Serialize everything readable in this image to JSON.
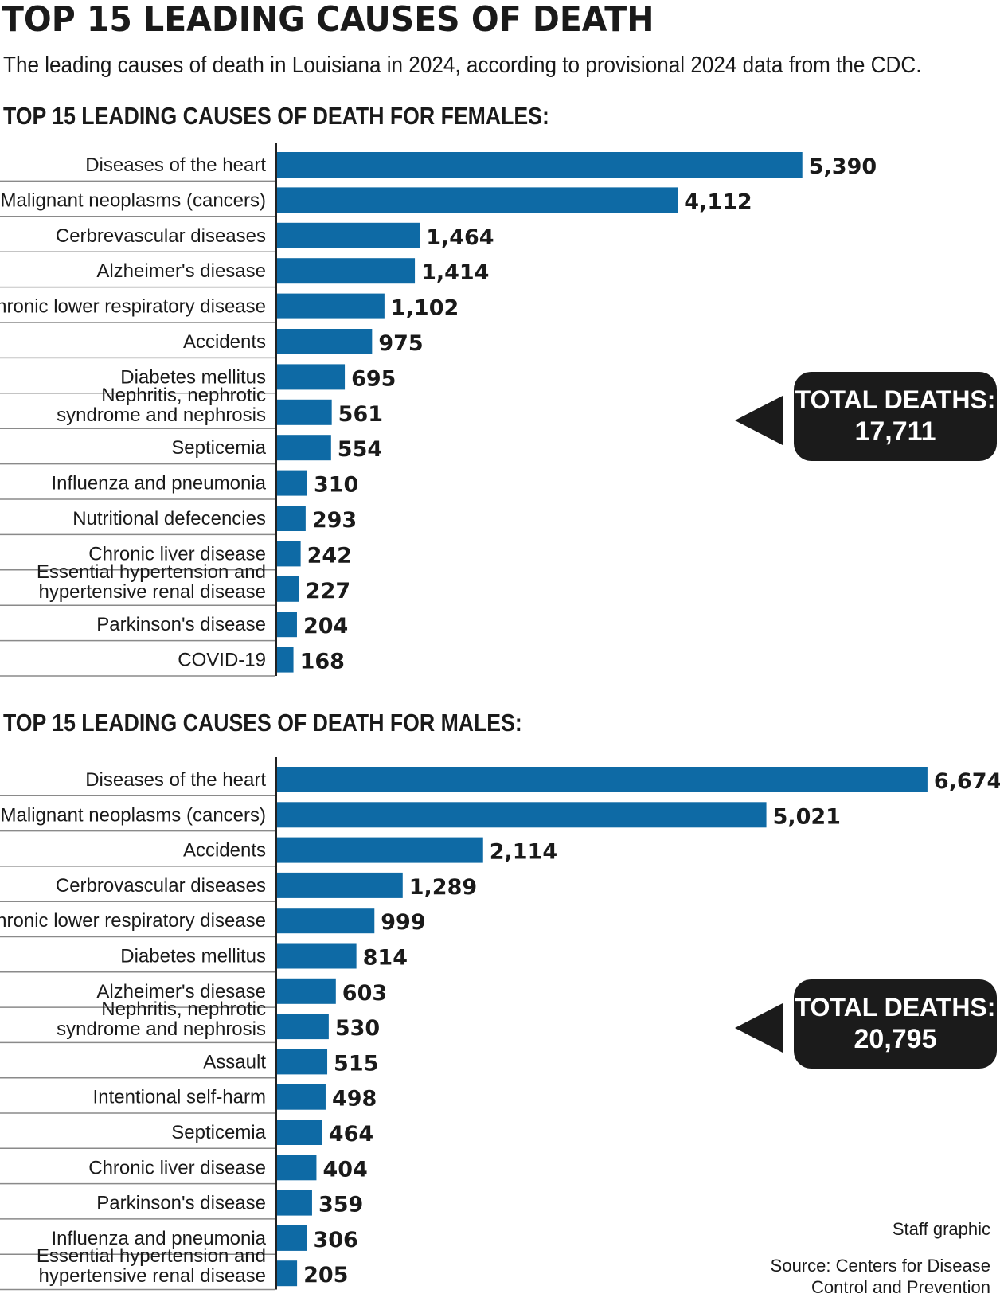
{
  "title": "TOP 15 LEADING CAUSES OF DEATH",
  "subtitle": "The leading causes of death in Louisiana in 2024, according to provisional 2024 data from the CDC.",
  "footer": {
    "credit": "Staff graphic",
    "source_line1": "Source: Centers for Disease",
    "source_line2": "Control and Prevention"
  },
  "colors": {
    "bar": "#0e6aa5",
    "callout": "#1b1b1b"
  },
  "chart_data": [
    {
      "type": "bar",
      "orientation": "horizontal",
      "title": "TOP 15 LEADING CAUSES OF DEATH FOR FEMALES:",
      "callout_label": "TOTAL DEATHS:",
      "callout_value": "17,711",
      "categories": [
        "Diseases of the heart",
        "Malignant neoplasms (cancers)",
        "Cerbrevascular diseases",
        "Alzheimer's diesase",
        "Chronic lower respiratory disease",
        "Accidents",
        "Diabetes mellitus",
        "Nephritis, nephrotic syndrome and nephrosis",
        "Septicemia",
        "Influenza and pneumonia",
        "Nutritional defecencies",
        "Chronic liver disease",
        "Essential hypertension and hypertensive renal disease",
        "Parkinson's disease",
        "COVID-19"
      ],
      "values": [
        5390,
        4112,
        1464,
        1414,
        1102,
        975,
        695,
        561,
        554,
        310,
        293,
        242,
        227,
        204,
        168
      ],
      "value_labels": [
        "5,390",
        "4,112",
        "1,464",
        "1,414",
        "1,102",
        "975",
        "695",
        "561",
        "554",
        "310",
        "293",
        "242",
        "227",
        "204",
        "168"
      ]
    },
    {
      "type": "bar",
      "orientation": "horizontal",
      "title": "TOP 15 LEADING CAUSES OF DEATH FOR MALES:",
      "callout_label": "TOTAL DEATHS:",
      "callout_value": "20,795",
      "categories": [
        "Diseases of the heart",
        "Malignant neoplasms (cancers)",
        "Accidents",
        "Cerbrovascular diseases",
        "Chronic lower respiratory disease",
        "Diabetes mellitus",
        "Alzheimer's diesase",
        "Nephritis, nephrotic syndrome and nephrosis",
        "Assault",
        "Intentional self-harm",
        "Septicemia",
        "Chronic liver disease",
        "Parkinson's disease",
        "Influenza and pneumonia",
        "Essential hypertension and hypertensive renal disease"
      ],
      "values": [
        6674,
        5021,
        2114,
        1289,
        999,
        814,
        603,
        530,
        515,
        498,
        464,
        404,
        359,
        306,
        205
      ],
      "value_labels": [
        "6,674",
        "5,021",
        "2,114",
        "1,289",
        "999",
        "814",
        "603",
        "530",
        "515",
        "498",
        "464",
        "404",
        "359",
        "306",
        "205"
      ]
    }
  ]
}
